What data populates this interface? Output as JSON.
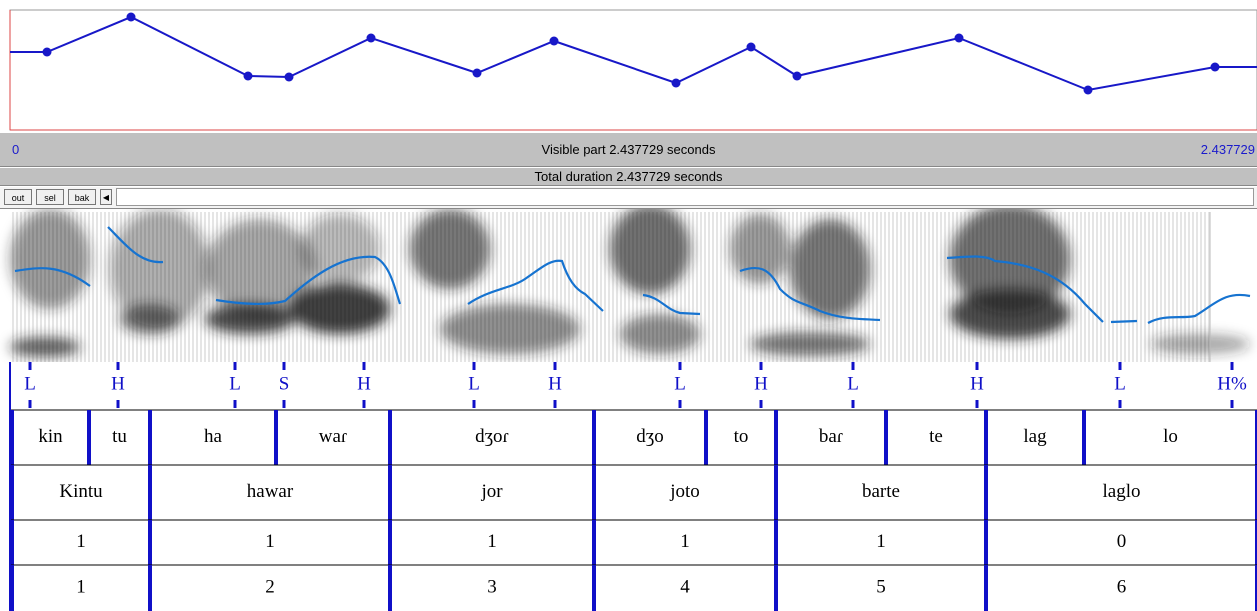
{
  "header": {
    "start": "0",
    "visible": "Visible part 2.437729 seconds",
    "end": "2.437729",
    "total": "Total duration 2.437729 seconds"
  },
  "buttons": [
    "out",
    "sel",
    "bak"
  ],
  "tiers": {
    "tones": [
      "L",
      "H",
      "L",
      "S",
      "H",
      "L",
      "H",
      "L",
      "H",
      "L",
      "H",
      "L",
      "H%"
    ],
    "syllables": [
      "kin",
      "tu",
      "ha",
      "waɾ",
      "dʒoɾ",
      "dʒo",
      "to",
      "baɾ",
      "te",
      "lag",
      "lo"
    ],
    "words": [
      "Kintu",
      "hawar",
      "jor",
      "joto",
      "barte",
      "laglo"
    ],
    "row1": [
      "1",
      "1",
      "1",
      "1",
      "1",
      "0"
    ],
    "row2": [
      "1",
      "2",
      "3",
      "4",
      "5",
      "6"
    ]
  }
}
